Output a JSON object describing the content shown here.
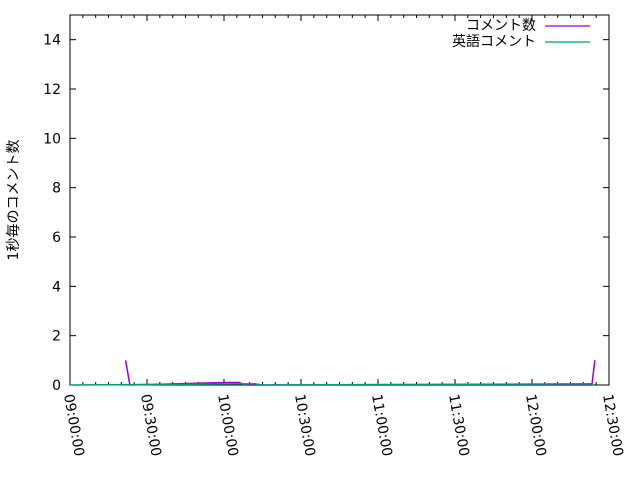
{
  "chart_data": {
    "type": "line",
    "title": "",
    "xlabel": "",
    "ylabel": "1秒毎のコメント数",
    "xlim": [
      "09:00:00",
      "12:30:00"
    ],
    "ylim": [
      0,
      15
    ],
    "x_ticks": [
      "09:00:00",
      "09:30:00",
      "10:00:00",
      "10:30:00",
      "11:00:00",
      "11:30:00",
      "12:00:00",
      "12:30:00"
    ],
    "y_ticks": [
      0,
      2,
      4,
      6,
      8,
      10,
      12,
      14
    ],
    "grid": false,
    "legend": "top-right",
    "series": [
      {
        "name": "コメント数",
        "color": "#9400d3",
        "points": [
          [
            "09:21:40",
            1
          ],
          [
            "09:23:20",
            0
          ],
          [
            "10:00:30",
            0.1
          ],
          [
            "10:06:00",
            0.1
          ],
          [
            "10:08:00",
            0
          ],
          [
            "12:23:20",
            0
          ],
          [
            "12:24:30",
            1
          ]
        ]
      },
      {
        "name": "英語コメント",
        "color": "#009e73",
        "points": [
          [
            "09:00:00",
            0
          ],
          [
            "10:12:00",
            0.05
          ],
          [
            "10:15:00",
            0
          ],
          [
            "12:23:00",
            0.05
          ],
          [
            "12:24:00",
            0
          ]
        ]
      }
    ]
  }
}
